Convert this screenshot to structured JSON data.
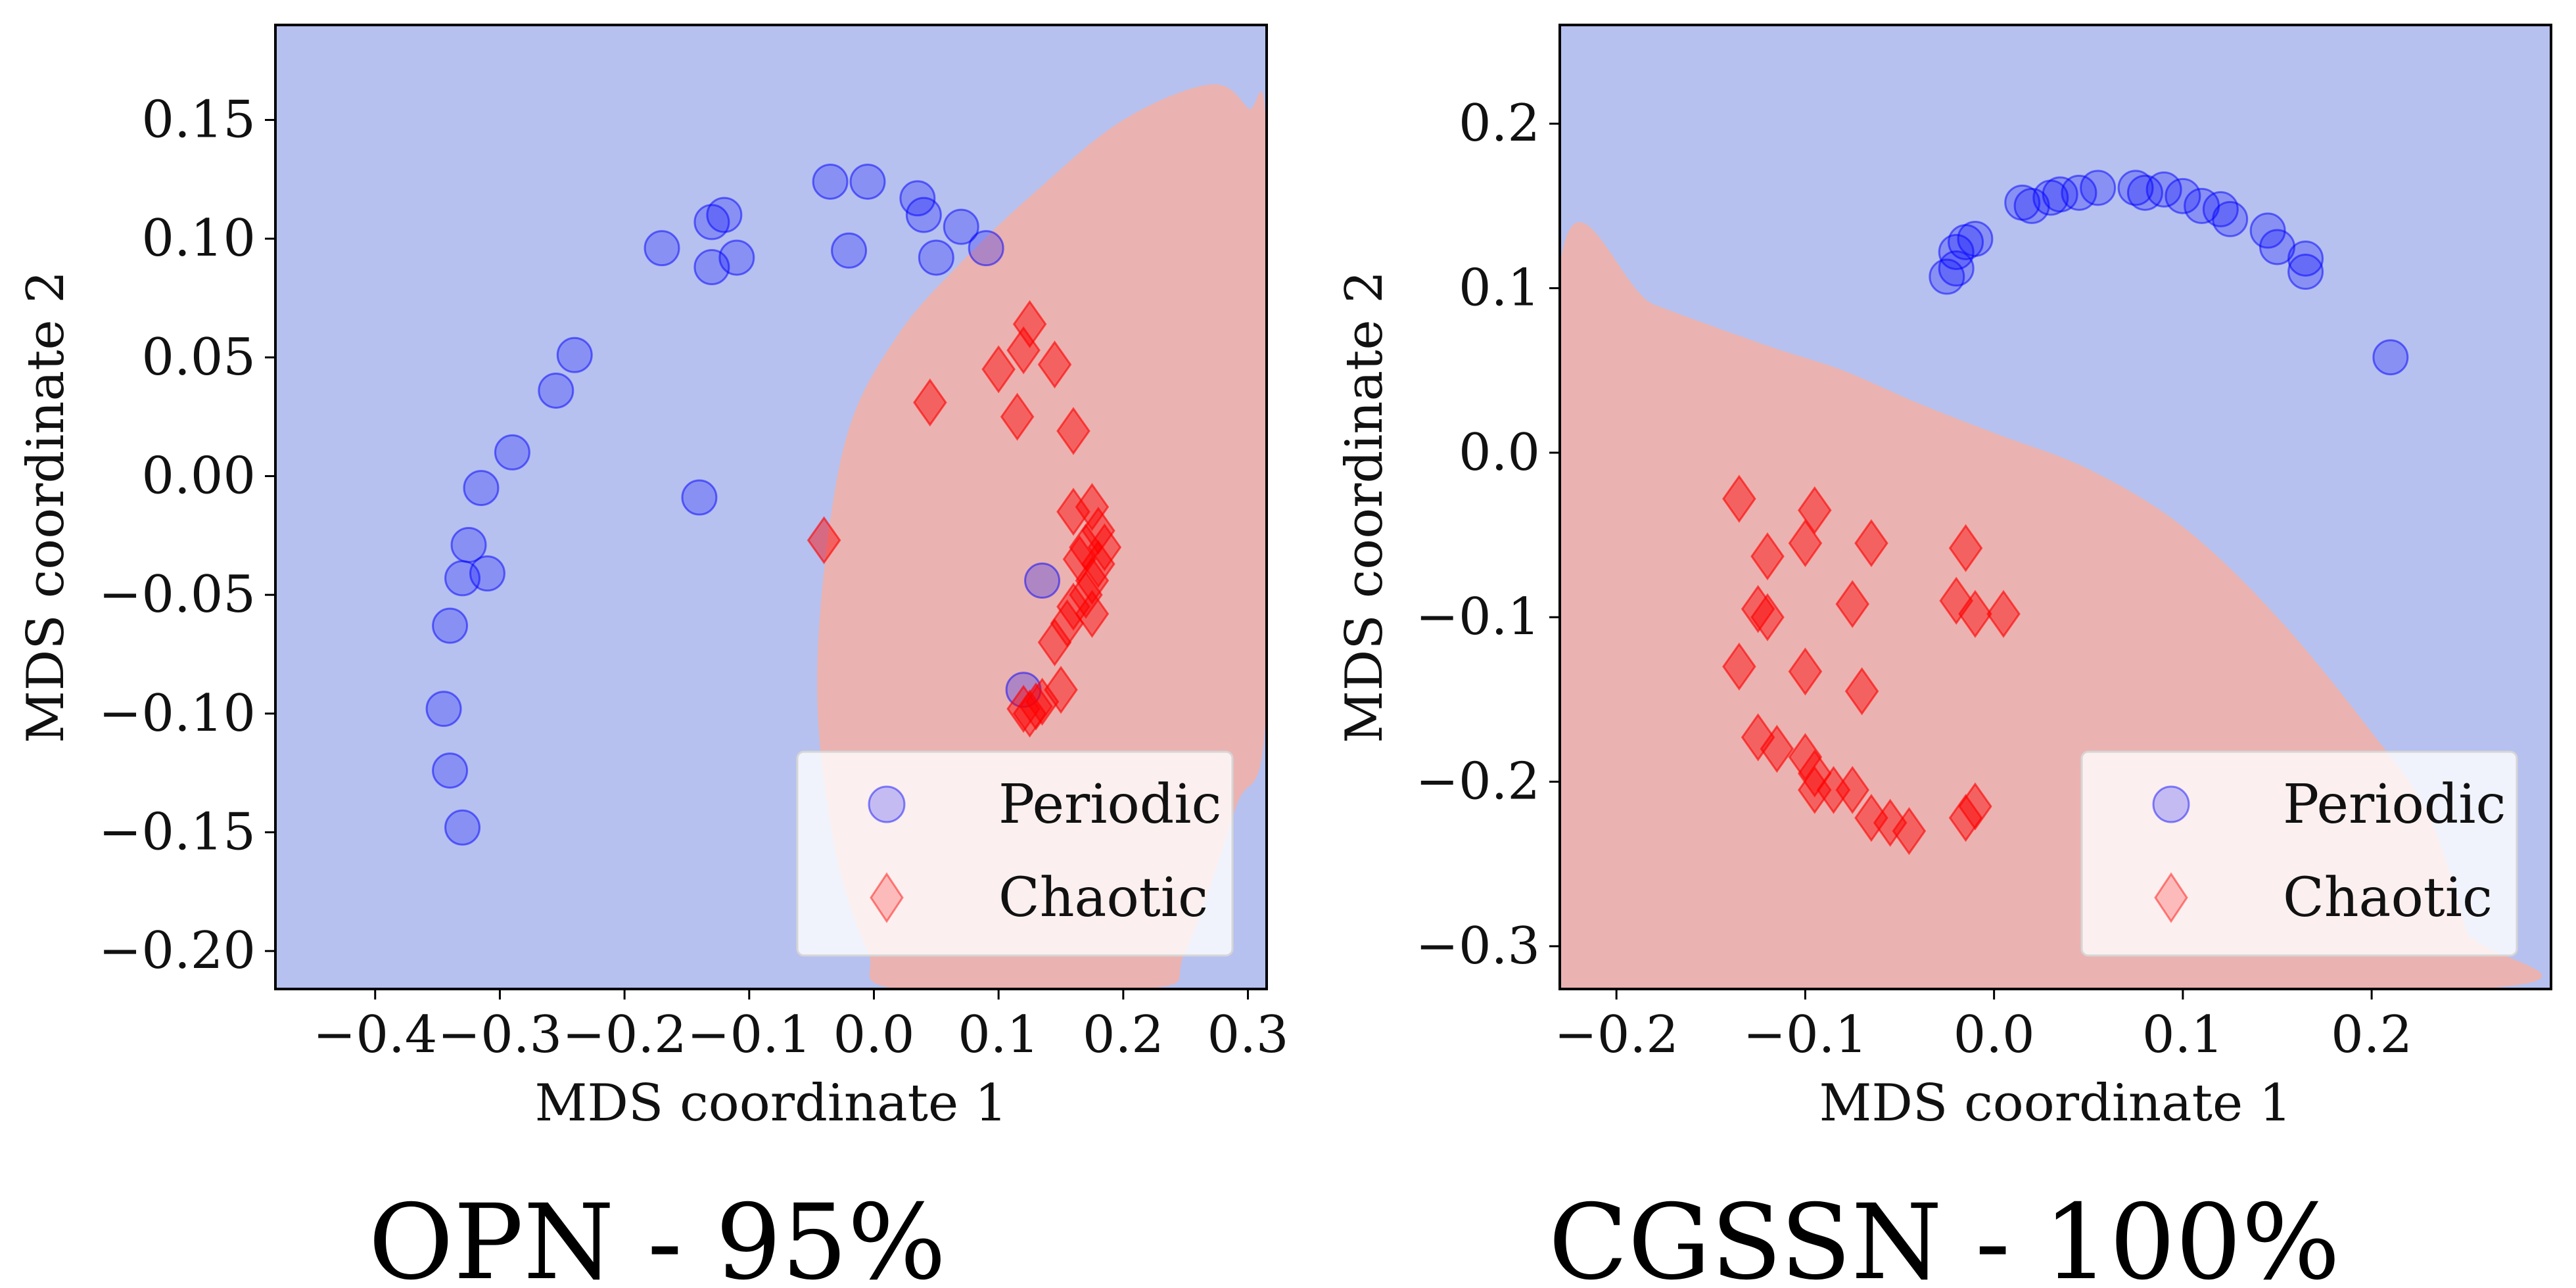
{
  "colors": {
    "periodic_region": "#b6c1ef",
    "chaotic_region": "#eab3b1",
    "periodic_marker": "#0000ff",
    "chaotic_marker": "#ff0000",
    "legend_bg": "#ffffff"
  },
  "chart_data": [
    {
      "type": "scatter",
      "title": "OPN - 95%",
      "xlabel": "MDS coordinate 1",
      "ylabel": "MDS coordinate 2",
      "xlim": [
        -0.48,
        0.315
      ],
      "ylim": [
        -0.216,
        0.19
      ],
      "xticks": [
        -0.4,
        -0.3,
        -0.2,
        -0.1,
        0.0,
        0.1,
        0.2,
        0.3
      ],
      "xtick_labels": [
        "−0.4",
        "−0.3",
        "−0.2",
        "−0.1",
        "0.0",
        "0.1",
        "0.2",
        "0.3"
      ],
      "yticks": [
        0.15,
        0.1,
        0.05,
        0.0,
        -0.05,
        -0.1,
        -0.15,
        -0.2
      ],
      "ytick_labels": [
        "0.15",
        "0.10",
        "0.05",
        "0.00",
        "−0.05",
        "−0.10",
        "−0.15",
        "−0.20"
      ],
      "legend": {
        "location": "lower right",
        "entries": [
          "Periodic",
          "Chaotic"
        ]
      },
      "chaotic_region_outline": [
        [
          0.27,
          0.165
        ],
        [
          0.3,
          0.155
        ],
        [
          0.315,
          0.14
        ],
        [
          0.315,
          -0.095
        ],
        [
          0.29,
          -0.14
        ],
        [
          0.25,
          -0.2
        ],
        [
          0.22,
          -0.216
        ],
        [
          0.02,
          -0.216
        ],
        [
          -0.005,
          -0.2
        ],
        [
          -0.03,
          -0.16
        ],
        [
          -0.045,
          -0.1
        ],
        [
          -0.04,
          -0.04
        ],
        [
          -0.02,
          0.02
        ],
        [
          0.02,
          0.06
        ],
        [
          0.07,
          0.09
        ],
        [
          0.13,
          0.12
        ],
        [
          0.2,
          0.15
        ]
      ],
      "series": [
        {
          "name": "Periodic",
          "marker": "circle",
          "points": [
            [
              -0.035,
              0.124
            ],
            [
              -0.005,
              0.124
            ],
            [
              0.035,
              0.117
            ],
            [
              0.04,
              0.11
            ],
            [
              0.07,
              0.105
            ],
            [
              0.09,
              0.096
            ],
            [
              0.05,
              0.092
            ],
            [
              -0.02,
              0.095
            ],
            [
              -0.12,
              0.11
            ],
            [
              -0.13,
              0.107
            ],
            [
              -0.11,
              0.092
            ],
            [
              -0.13,
              0.088
            ],
            [
              -0.17,
              0.096
            ],
            [
              -0.24,
              0.051
            ],
            [
              -0.255,
              0.036
            ],
            [
              -0.29,
              0.01
            ],
            [
              -0.315,
              -0.005
            ],
            [
              -0.325,
              -0.029
            ],
            [
              -0.31,
              -0.041
            ],
            [
              -0.33,
              -0.043
            ],
            [
              -0.34,
              -0.063
            ],
            [
              -0.345,
              -0.098
            ],
            [
              -0.34,
              -0.124
            ],
            [
              -0.33,
              -0.148
            ],
            [
              -0.14,
              -0.009
            ],
            [
              0.135,
              -0.044
            ],
            [
              0.12,
              -0.09
            ]
          ]
        },
        {
          "name": "Chaotic",
          "marker": "diamond",
          "points": [
            [
              0.125,
              0.064
            ],
            [
              0.12,
              0.053
            ],
            [
              0.1,
              0.045
            ],
            [
              0.145,
              0.047
            ],
            [
              0.045,
              0.031
            ],
            [
              0.115,
              0.025
            ],
            [
              0.16,
              0.019
            ],
            [
              -0.04,
              -0.027
            ],
            [
              0.16,
              -0.015
            ],
            [
              0.175,
              -0.013
            ],
            [
              0.18,
              -0.023
            ],
            [
              0.17,
              -0.03
            ],
            [
              0.185,
              -0.03
            ],
            [
              0.165,
              -0.035
            ],
            [
              0.18,
              -0.037
            ],
            [
              0.175,
              -0.044
            ],
            [
              0.17,
              -0.05
            ],
            [
              0.16,
              -0.055
            ],
            [
              0.175,
              -0.058
            ],
            [
              0.155,
              -0.062
            ],
            [
              0.145,
              -0.07
            ],
            [
              0.15,
              -0.09
            ],
            [
              0.135,
              -0.095
            ],
            [
              0.12,
              -0.098
            ],
            [
              0.125,
              -0.1
            ],
            [
              0.13,
              -0.097
            ]
          ]
        }
      ]
    },
    {
      "type": "scatter",
      "title": "CGSSN - 100%",
      "xlabel": "MDS coordinate 1",
      "ylabel": "MDS coordinate 2",
      "xlim": [
        -0.23,
        0.295
      ],
      "ylim": [
        -0.326,
        0.26
      ],
      "xticks": [
        -0.2,
        -0.1,
        0.0,
        0.1,
        0.2
      ],
      "xtick_labels": [
        "−0.2",
        "−0.1",
        "0.0",
        "0.1",
        "0.2"
      ],
      "yticks": [
        0.2,
        0.1,
        0.0,
        -0.1,
        -0.2,
        -0.3
      ],
      "ytick_labels": [
        "0.2",
        "0.1",
        "0.0",
        "−0.1",
        "−0.2",
        "−0.3"
      ],
      "legend": {
        "location": "lower right",
        "entries": [
          "Periodic",
          "Chaotic"
        ]
      },
      "chaotic_region_outline": [
        [
          -0.23,
          0.113
        ],
        [
          -0.18,
          0.09
        ],
        [
          -0.12,
          0.065
        ],
        [
          -0.08,
          0.05
        ],
        [
          -0.04,
          0.03
        ],
        [
          0.0,
          0.012
        ],
        [
          0.05,
          -0.01
        ],
        [
          0.1,
          -0.045
        ],
        [
          0.15,
          -0.1
        ],
        [
          0.2,
          -0.17
        ],
        [
          0.23,
          -0.22
        ],
        [
          0.25,
          -0.29
        ],
        [
          0.255,
          -0.326
        ],
        [
          -0.23,
          -0.326
        ]
      ],
      "series": [
        {
          "name": "Periodic",
          "marker": "circle",
          "points": [
            [
              -0.025,
              0.107
            ],
            [
              -0.02,
              0.112
            ],
            [
              -0.02,
              0.122
            ],
            [
              -0.015,
              0.128
            ],
            [
              -0.01,
              0.13
            ],
            [
              0.015,
              0.152
            ],
            [
              0.02,
              0.15
            ],
            [
              0.03,
              0.155
            ],
            [
              0.035,
              0.157
            ],
            [
              0.045,
              0.158
            ],
            [
              0.055,
              0.161
            ],
            [
              0.075,
              0.161
            ],
            [
              0.08,
              0.158
            ],
            [
              0.09,
              0.16
            ],
            [
              0.1,
              0.156
            ],
            [
              0.11,
              0.15
            ],
            [
              0.12,
              0.148
            ],
            [
              0.125,
              0.142
            ],
            [
              0.145,
              0.135
            ],
            [
              0.15,
              0.125
            ],
            [
              0.165,
              0.118
            ],
            [
              0.165,
              0.11
            ],
            [
              0.21,
              0.058
            ]
          ]
        },
        {
          "name": "Chaotic",
          "marker": "diamond",
          "points": [
            [
              -0.135,
              -0.028
            ],
            [
              -0.095,
              -0.035
            ],
            [
              -0.1,
              -0.055
            ],
            [
              -0.12,
              -0.063
            ],
            [
              -0.065,
              -0.055
            ],
            [
              -0.015,
              -0.058
            ],
            [
              -0.125,
              -0.095
            ],
            [
              -0.12,
              -0.1
            ],
            [
              -0.075,
              -0.092
            ],
            [
              -0.02,
              -0.09
            ],
            [
              -0.01,
              -0.098
            ],
            [
              0.005,
              -0.098
            ],
            [
              -0.135,
              -0.13
            ],
            [
              -0.1,
              -0.133
            ],
            [
              -0.07,
              -0.145
            ],
            [
              -0.125,
              -0.173
            ],
            [
              -0.115,
              -0.18
            ],
            [
              -0.1,
              -0.185
            ],
            [
              -0.095,
              -0.195
            ],
            [
              -0.095,
              -0.205
            ],
            [
              -0.085,
              -0.205
            ],
            [
              -0.075,
              -0.205
            ],
            [
              -0.065,
              -0.222
            ],
            [
              -0.055,
              -0.225
            ],
            [
              -0.045,
              -0.23
            ],
            [
              -0.015,
              -0.222
            ],
            [
              -0.01,
              -0.215
            ]
          ]
        }
      ]
    }
  ]
}
